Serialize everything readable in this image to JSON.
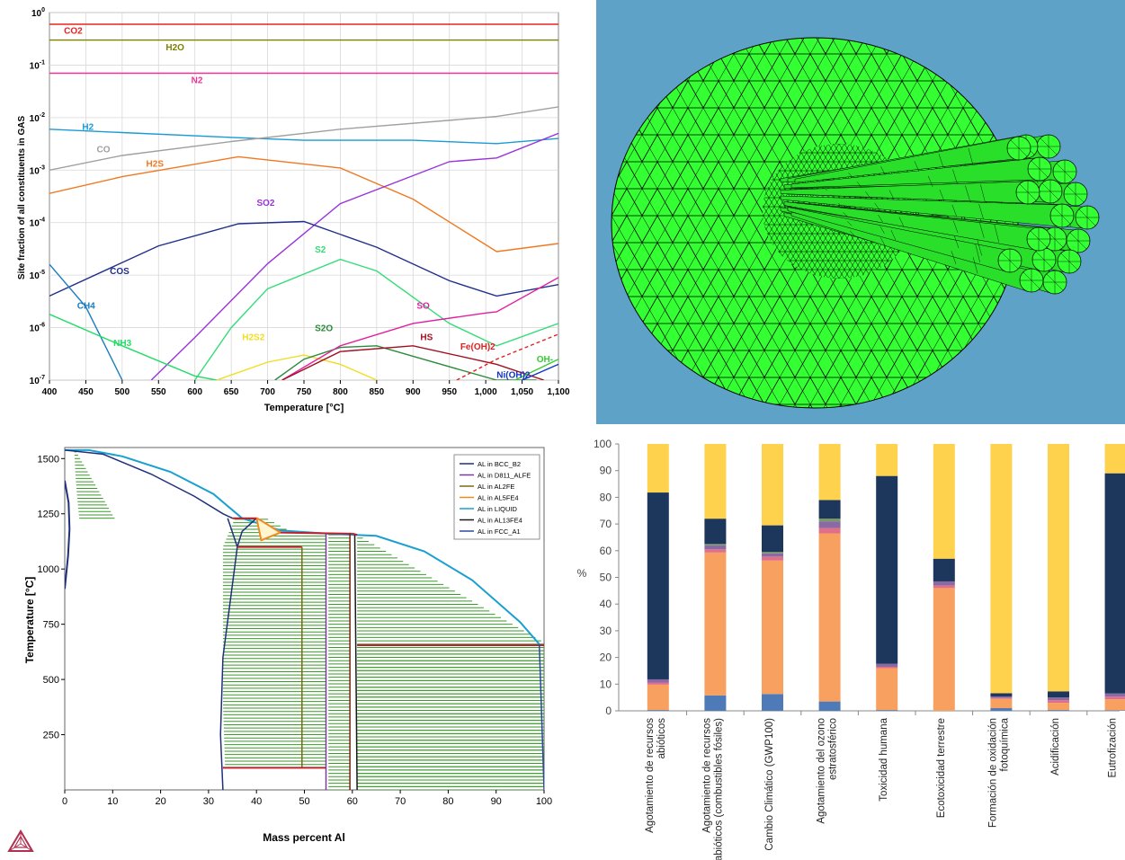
{
  "colors": {
    "mesh_background": "#5fa2c8",
    "mesh_fill": "#33ff33",
    "lca_navy": "#1d365c",
    "lca_orange": "#f8a060",
    "lca_yellow": "#ffd24d",
    "lca_blue": "#4e7ab7",
    "lca_purple": "#8a6aa5",
    "lca_pink": "#e0708a",
    "hatch_green": "#3a9a2a"
  },
  "chart_data": [
    {
      "type": "line",
      "y_scale": "log",
      "xlabel": "Temperature [°C]",
      "ylabel": "Site fraction of all constituents in GAS",
      "xlim": [
        400,
        1100
      ],
      "ylim": [
        1e-07,
        1
      ],
      "x_tick_labels": [
        "400",
        "450",
        "500",
        "550",
        "600",
        "650",
        "700",
        "750",
        "800",
        "850",
        "900",
        "950",
        "1,000",
        "1,050",
        "1,100"
      ],
      "y_tick_labels": [
        {
          "base": "10",
          "exp": "0",
          "value": 1
        },
        {
          "base": "10",
          "exp": "-1",
          "value": 0.1
        },
        {
          "base": "10",
          "exp": "-2",
          "value": 0.01
        },
        {
          "base": "10",
          "exp": "-3",
          "value": 0.001
        },
        {
          "base": "10",
          "exp": "-4",
          "value": 0.0001
        },
        {
          "base": "10",
          "exp": "-5",
          "value": 1e-05
        },
        {
          "base": "10",
          "exp": "-6",
          "value": 1e-06
        },
        {
          "base": "10",
          "exp": "-7",
          "value": 1e-07
        }
      ],
      "series": [
        {
          "name": "CO2",
          "color": "#e8231f",
          "x": [
            400,
            1100
          ],
          "y": [
            0.6,
            0.6
          ],
          "label_at": [
            420,
            0.4
          ]
        },
        {
          "name": "H2O",
          "color": "#808000",
          "x": [
            400,
            1100
          ],
          "y": [
            0.3,
            0.3
          ],
          "label_at": [
            560,
            0.19
          ]
        },
        {
          "name": "N2",
          "color": "#ee3396",
          "x": [
            400,
            1100
          ],
          "y": [
            0.07,
            0.07
          ],
          "label_at": [
            595,
            0.045
          ]
        },
        {
          "name": "H2",
          "color": "#1a9ad6",
          "x": [
            400,
            500,
            650,
            750,
            900,
            1015,
            1100
          ],
          "y": [
            0.006,
            0.0052,
            0.0042,
            0.0037,
            0.0037,
            0.0032,
            0.004
          ],
          "label_at": [
            445,
            0.0058
          ]
        },
        {
          "name": "CO",
          "color": "#a0a0a0",
          "x": [
            400,
            500,
            650,
            800,
            1015,
            1100
          ],
          "y": [
            0.001,
            0.0019,
            0.0035,
            0.006,
            0.0105,
            0.016
          ],
          "label_at": [
            465,
            0.0022
          ]
        },
        {
          "name": "H2S",
          "color": "#f07820",
          "x": [
            400,
            500,
            660,
            800,
            900,
            1015,
            1100
          ],
          "y": [
            0.00036,
            0.00075,
            0.0018,
            0.0011,
            0.00028,
            2.8e-05,
            4e-05
          ],
          "label_at": [
            533,
            0.00115
          ]
        },
        {
          "name": "SO2",
          "color": "#9933dd",
          "x": [
            540,
            600,
            700,
            800,
            950,
            1015,
            1100
          ],
          "y": [
            1e-07,
            6.5e-07,
            1.65e-05,
            0.00023,
            0.00145,
            0.0017,
            0.005
          ],
          "label_at": [
            685,
            0.00021
          ]
        },
        {
          "name": "COS",
          "color": "#1f2f8a",
          "x": [
            400,
            550,
            660,
            750,
            850,
            950,
            1015,
            1100
          ],
          "y": [
            4e-06,
            3.6e-05,
            9.5e-05,
            0.000105,
            3.4e-05,
            7.8e-06,
            4e-06,
            6.6e-06
          ],
          "label_at": [
            483,
            1.05e-05
          ]
        },
        {
          "name": "S2",
          "color": "#33dd77",
          "x": [
            600,
            650,
            700,
            800,
            850,
            950,
            1015,
            1100
          ],
          "y": [
            1e-07,
            1e-06,
            5.5e-06,
            2e-05,
            1.2e-05,
            1.2e-06,
            4.5e-07,
            1.2e-06
          ],
          "label_at": [
            765,
            2.7e-05
          ]
        },
        {
          "name": "CH4",
          "color": "#1a7dc0",
          "x": [
            400,
            450,
            500
          ],
          "y": [
            1.6e-05,
            2.5e-06,
            1e-07
          ],
          "label_at": [
            438,
            2.3e-06
          ]
        },
        {
          "name": "NH3",
          "color": "#22dd66",
          "x": [
            400,
            500,
            600,
            630
          ],
          "y": [
            1.8e-06,
            4.5e-07,
            1.2e-07,
            1e-07
          ],
          "label_at": [
            488,
            4.5e-07
          ]
        },
        {
          "name": "H2S2",
          "color": "#f0dd20",
          "x": [
            630,
            700,
            750,
            800,
            850
          ],
          "y": [
            1e-07,
            2.2e-07,
            3e-07,
            2e-07,
            1e-07
          ],
          "label_at": [
            665,
            5.8e-07
          ]
        },
        {
          "name": "S2O",
          "color": "#2a8a3a",
          "x": [
            710,
            750,
            800,
            850,
            950,
            1015,
            1070
          ],
          "y": [
            1e-07,
            2.5e-07,
            4.2e-07,
            4.5e-07,
            1.8e-07,
            1e-07,
            1e-07
          ],
          "label_at": [
            765,
            8.5e-07
          ]
        },
        {
          "name": "SO",
          "color": "#e0209e",
          "x": [
            720,
            800,
            900,
            1000,
            1015,
            1100
          ],
          "y": [
            1e-07,
            4.5e-07,
            1.2e-06,
            1.9e-06,
            2e-06,
            9e-06
          ],
          "label_at": [
            905,
            2.3e-06
          ]
        },
        {
          "name": "HS",
          "color": "#a01020",
          "x": [
            720,
            800,
            900,
            1015,
            1080
          ],
          "y": [
            1e-07,
            3.5e-07,
            4.5e-07,
            2e-07,
            1e-07
          ],
          "label_at": [
            910,
            5.8e-07
          ]
        },
        {
          "name": "Fe(OH)2",
          "color": "#e02020",
          "x": [
            960,
            1015,
            1100
          ],
          "y": [
            1e-07,
            2.5e-07,
            7.5e-07
          ],
          "dashed": true,
          "label_at": [
            965,
            3.8e-07
          ]
        },
        {
          "name": "OH-",
          "color": "#33cc33",
          "x": [
            1040,
            1100
          ],
          "y": [
            1e-07,
            2.5e-07
          ],
          "label_at": [
            1070,
            2.2e-07
          ]
        },
        {
          "name": "Ni(OH)2",
          "color": "#1133cc",
          "x": [
            1050,
            1100
          ],
          "y": [
            1e-07,
            2e-07
          ],
          "label_at": [
            1015,
            1.1e-07
          ]
        }
      ]
    },
    {
      "type": "phase_diagram",
      "xlabel": "Mass percent Al",
      "ylabel": "Temperature [°C]",
      "xlim": [
        0,
        100
      ],
      "ylim": [
        0,
        1550
      ],
      "x_ticks": [
        0,
        10,
        20,
        30,
        40,
        50,
        60,
        70,
        80,
        90,
        100
      ],
      "y_ticks": [
        250,
        500,
        750,
        1000,
        1250,
        1500
      ],
      "legend": [
        "AL in BCC_B2",
        "AL in D811_ALFE",
        "AL in AL2FE",
        "AL in AL5FE4",
        "AL in LIQUID",
        "AL in AL13FE4",
        "AL in FCC_A1"
      ],
      "legend_colors": [
        "#1f2f7a",
        "#7a3aa0",
        "#7a6a10",
        "#f08a20",
        "#1aa0d0",
        "#1a1a1a",
        "#2a4aa0"
      ],
      "legend_placement": "top-right"
    },
    {
      "type": "bar",
      "stacked": true,
      "ylabel": "%",
      "ylim": [
        0,
        100
      ],
      "y_ticks": [
        0,
        10,
        20,
        30,
        40,
        50,
        60,
        70,
        80,
        90,
        100
      ],
      "categories": [
        "Agotamiento de recursos abióticos",
        "Agotamiento de recursos abióticos (combustibles fósiles)",
        "Cambio Climático (GWP100)",
        "Agotamiento del ozono estratosférico",
        "Toxicidad humana",
        "Ecotoxicidad terrestre",
        "Formación de oxidación fotoquímica",
        "Acidificación",
        "Eutrofización"
      ],
      "category_lines": [
        [
          "Agotamiento de recursos",
          "abióticos"
        ],
        [
          "Agotamiento de recursos",
          "abióticos (combustibles fósiles)"
        ],
        [
          "Cambio Climático (GWP100)"
        ],
        [
          "Agotamiento del ozono",
          "estratosférico"
        ],
        [
          "Toxicidad humana"
        ],
        [
          "Ecotoxicidad terrestre"
        ],
        [
          "Formación de oxidación",
          "fotoquímica"
        ],
        [
          "Acidificación"
        ],
        [
          "Eutrofización"
        ]
      ],
      "stack_colors": [
        "#4e7ab7",
        "#f8a060",
        "#e0708a",
        "#8a6aa5",
        "#7a9a60",
        "#1d365c",
        "#ffd24d"
      ],
      "stacks": [
        [
          0.3,
          9.5,
          0.8,
          1.2,
          0,
          70,
          18.2
        ],
        [
          5.8,
          53.5,
          1.2,
          1.5,
          0.5,
          9.5,
          28
        ],
        [
          6.3,
          50,
          1.5,
          1.2,
          0.5,
          10,
          30.5
        ],
        [
          3.5,
          63,
          2,
          2.5,
          1,
          7,
          21
        ],
        [
          0.3,
          15.7,
          0.5,
          1.1,
          0,
          70.4,
          12
        ],
        [
          0,
          46,
          1,
          1.5,
          0,
          8.5,
          43
        ],
        [
          1,
          3.5,
          0.3,
          0.6,
          0,
          1.2,
          93.4
        ],
        [
          0.3,
          2.7,
          1,
          1,
          0,
          2.3,
          92.7
        ],
        [
          0.2,
          4.1,
          1,
          1.2,
          0,
          82.5,
          11
        ]
      ]
    }
  ]
}
